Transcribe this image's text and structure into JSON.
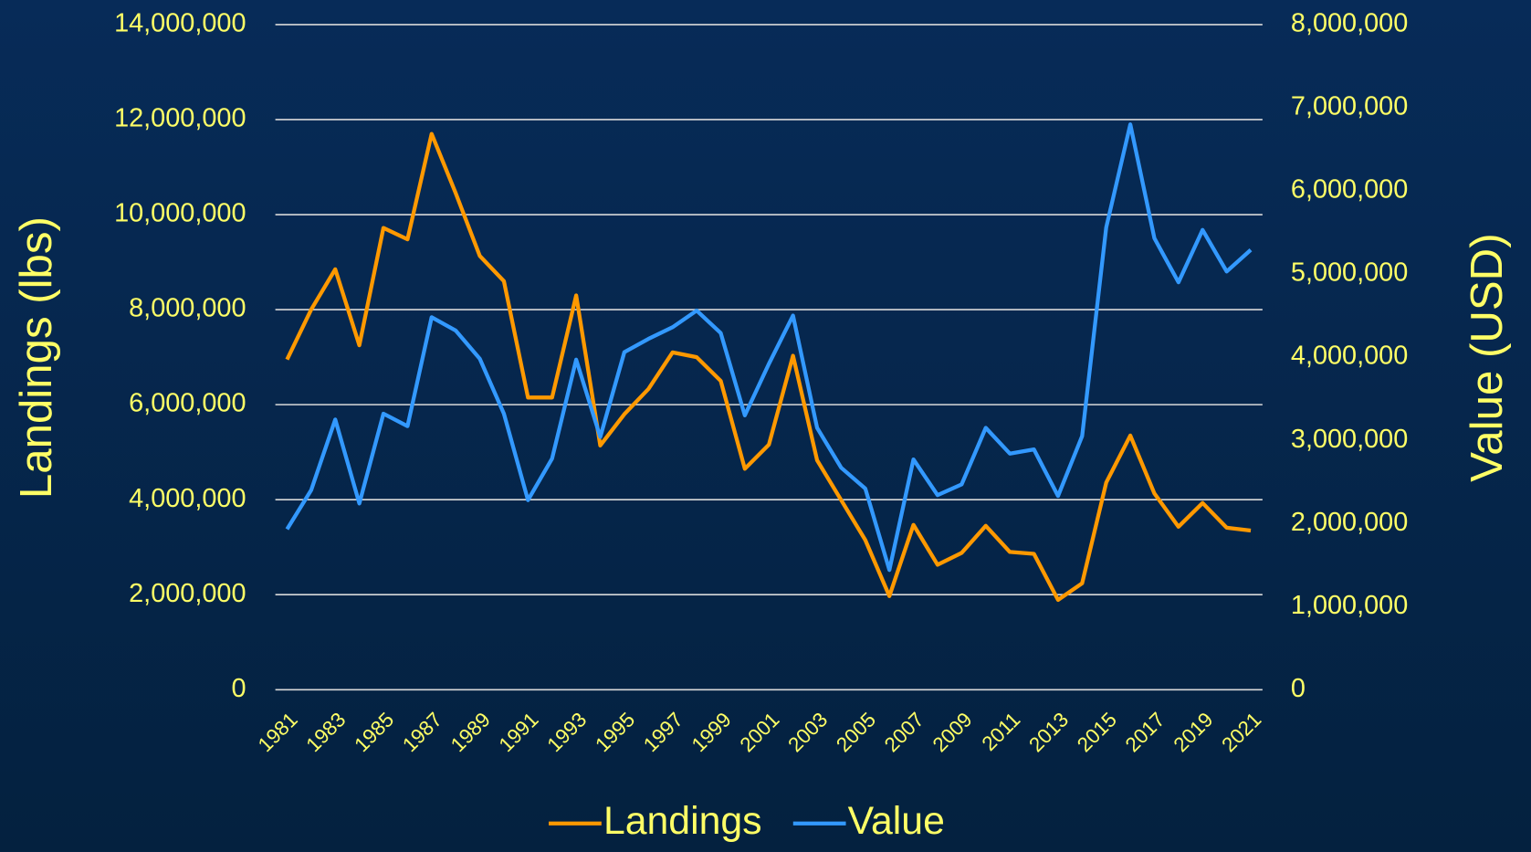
{
  "chart_data": {
    "type": "line",
    "categories": [
      "1981",
      null,
      "1983",
      null,
      "1985",
      null,
      "1987",
      null,
      "1989",
      null,
      "1991",
      null,
      "1993",
      null,
      "1995",
      null,
      "1997",
      null,
      "1999",
      null,
      "2001",
      null,
      "2003",
      null,
      "2005",
      null,
      "2007",
      null,
      "2009",
      null,
      "2011",
      null,
      "2013",
      null,
      "2015",
      null,
      "2017",
      null,
      "2019",
      null,
      "2021"
    ],
    "ylabel": "Landings (lbs)",
    "y2label": "Value (USD)",
    "ylim": [
      0,
      14000000
    ],
    "yticks": [
      0,
      {
        "value": 2000000,
        "label": "2,000,000"
      },
      {
        "value": 4000000,
        "label": "4,000,000"
      },
      {
        "value": 6000000,
        "label": "6,000,000"
      },
      {
        "value": 8000000,
        "label": "8,000,000"
      },
      {
        "value": 10000000,
        "label": "10,000,000"
      },
      {
        "value": 12000000,
        "label": "12,000,000"
      },
      {
        "value": 14000000,
        "label": "14,000,000"
      }
    ],
    "y2lim": [
      0,
      8000000
    ],
    "y2ticks": [
      0,
      {
        "value": 1000000,
        "label": "1,000,000"
      },
      {
        "value": 2000000,
        "label": "2,000,000"
      },
      {
        "value": 3000000,
        "label": "3,000,000"
      },
      {
        "value": 4000000,
        "label": "4,000,000"
      },
      {
        "value": 5000000,
        "label": "5,000,000"
      },
      {
        "value": 6000000,
        "label": "6,000,000"
      },
      {
        "value": 7000000,
        "label": "7,000,000"
      },
      {
        "value": 8000000,
        "label": "8,000,000"
      }
    ],
    "grid": true,
    "legend": "bottom",
    "series": [
      {
        "name": "Landings",
        "color": "#ff9900",
        "values": [
          6950000,
          8000000,
          8850000,
          7250000,
          9720000,
          9480000,
          11700000,
          10450000,
          9130000,
          8600000,
          6150000,
          6150000,
          8300000,
          5140000,
          5800000,
          6330000,
          7100000,
          7000000,
          6500000,
          4650000,
          5160000,
          7030000,
          4830000,
          3990000,
          3150000,
          1970000,
          3470000,
          2630000,
          2880000,
          3450000,
          2900000,
          2860000,
          1890000,
          2240000,
          4360000,
          5350000,
          4130000,
          3430000,
          3930000,
          3410000,
          3350000
        ]
      },
      {
        "name": "Value",
        "color": "#3399ff",
        "axis": "y2",
        "values": [
          1930000,
          2400000,
          3250000,
          2240000,
          3320000,
          3170000,
          4480000,
          4320000,
          3980000,
          3320000,
          2280000,
          2780000,
          3970000,
          3040000,
          4060000,
          4220000,
          4360000,
          4560000,
          4290000,
          3300000,
          3920000,
          4500000,
          3150000,
          2670000,
          2420000,
          1440000,
          2770000,
          2340000,
          2470000,
          3150000,
          2840000,
          2890000,
          2330000,
          3050000,
          5560000,
          6800000,
          5430000,
          4900000,
          5530000,
          5030000,
          5290000
        ]
      }
    ]
  }
}
